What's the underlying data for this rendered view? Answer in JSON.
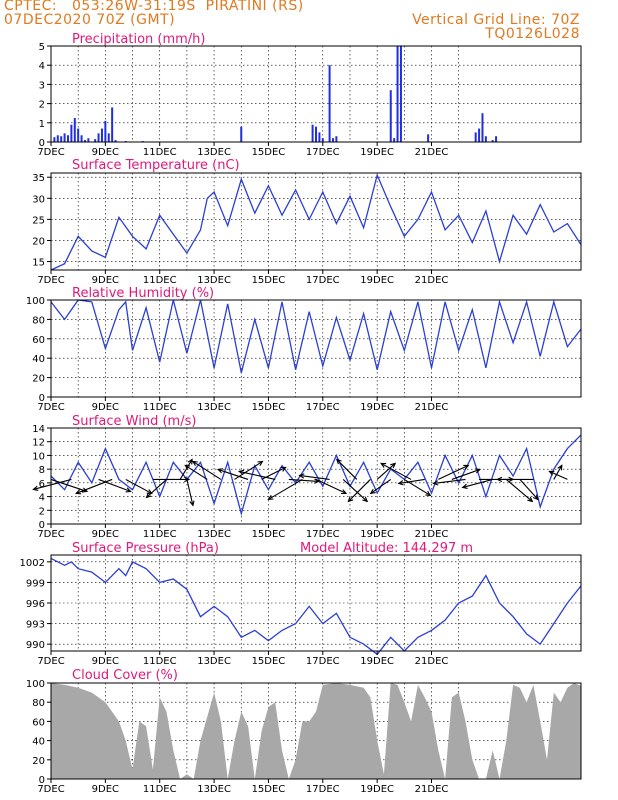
{
  "header": {
    "left_line1": "CPTEC:   053:26W-31:19S  PIRATINI (RS)",
    "left_line2": "07DEC2020 70Z (GMT)",
    "right_line1": "Vertical Grid Line: 70Z",
    "right_line2": "TQ0126L028"
  },
  "model_altitude": "Model Altitude: 144.297 m",
  "x_ticks": [
    "7DEC",
    "9DEC",
    "11DEC",
    "13DEC",
    "15DEC",
    "17DEC",
    "19DEC",
    "21DEC"
  ],
  "chart_data": [
    {
      "type": "bar",
      "title": "Precipitation (mm/h)",
      "ylim": [
        0,
        5
      ],
      "yticks": [
        "0",
        "1",
        "2",
        "3",
        "4",
        "5"
      ],
      "x_unit": "hours since 07DEC 00Z",
      "bars": [
        {
          "x": 3,
          "v": 0.25
        },
        {
          "x": 6,
          "v": 0.35
        },
        {
          "x": 9,
          "v": 0.3
        },
        {
          "x": 12,
          "v": 0.45
        },
        {
          "x": 15,
          "v": 0.35
        },
        {
          "x": 18,
          "v": 0.9
        },
        {
          "x": 21,
          "v": 1.25
        },
        {
          "x": 24,
          "v": 0.7
        },
        {
          "x": 27,
          "v": 0.35
        },
        {
          "x": 30,
          "v": 0.1
        },
        {
          "x": 33,
          "v": 0.2
        },
        {
          "x": 39,
          "v": 0.15
        },
        {
          "x": 42,
          "v": 0.45
        },
        {
          "x": 45,
          "v": 0.7
        },
        {
          "x": 48,
          "v": 1.1
        },
        {
          "x": 51,
          "v": 0.45
        },
        {
          "x": 54,
          "v": 1.8
        },
        {
          "x": 57,
          "v": 0.1
        },
        {
          "x": 66,
          "v": 0.05
        },
        {
          "x": 81,
          "v": 0.05
        },
        {
          "x": 168,
          "v": 0.8
        },
        {
          "x": 231,
          "v": 0.9
        },
        {
          "x": 234,
          "v": 0.8
        },
        {
          "x": 237,
          "v": 0.5
        },
        {
          "x": 240,
          "v": 0.2
        },
        {
          "x": 246,
          "v": 4.0
        },
        {
          "x": 249,
          "v": 0.2
        },
        {
          "x": 252,
          "v": 0.3
        },
        {
          "x": 300,
          "v": 2.7
        },
        {
          "x": 303,
          "v": 0.2
        },
        {
          "x": 306,
          "v": 5.0
        },
        {
          "x": 309,
          "v": 5.0
        },
        {
          "x": 333,
          "v": 0.4
        },
        {
          "x": 375,
          "v": 0.5
        },
        {
          "x": 378,
          "v": 0.7
        },
        {
          "x": 381,
          "v": 1.5
        },
        {
          "x": 384,
          "v": 0.3
        },
        {
          "x": 390,
          "v": 0.1
        },
        {
          "x": 393,
          "v": 0.3
        }
      ]
    },
    {
      "type": "line",
      "title": "Surface Temperature (nC)",
      "ylim": [
        13,
        36
      ],
      "yticks": [
        "15",
        "20",
        "25",
        "30",
        "35"
      ],
      "ytick_values": [
        15,
        20,
        25,
        30,
        35
      ],
      "x_unit": "hours since 07DEC 00Z",
      "points": [
        [
          0,
          13
        ],
        [
          12,
          14.5
        ],
        [
          24,
          21
        ],
        [
          36,
          17.5
        ],
        [
          48,
          16
        ],
        [
          60,
          25.5
        ],
        [
          72,
          21
        ],
        [
          84,
          18
        ],
        [
          96,
          26
        ],
        [
          108,
          21.5
        ],
        [
          120,
          17
        ],
        [
          132,
          22.5
        ],
        [
          138,
          30
        ],
        [
          144,
          31.5
        ],
        [
          156,
          23.5
        ],
        [
          168,
          34.5
        ],
        [
          180,
          26.5
        ],
        [
          192,
          33
        ],
        [
          204,
          26
        ],
        [
          216,
          32
        ],
        [
          228,
          25
        ],
        [
          240,
          31.5
        ],
        [
          252,
          24
        ],
        [
          264,
          30.5
        ],
        [
          276,
          23
        ],
        [
          288,
          35.5
        ],
        [
          300,
          28
        ],
        [
          312,
          21
        ],
        [
          324,
          25
        ],
        [
          336,
          31.5
        ],
        [
          348,
          22.5
        ],
        [
          360,
          26
        ],
        [
          372,
          19.5
        ],
        [
          384,
          27
        ],
        [
          396,
          15
        ],
        [
          408,
          26
        ],
        [
          420,
          21.5
        ],
        [
          432,
          28.5
        ],
        [
          444,
          22
        ],
        [
          456,
          24
        ],
        [
          468,
          19
        ]
      ]
    },
    {
      "type": "line",
      "title": "Relative Humidity (%)",
      "ylim": [
        0,
        100
      ],
      "yticks": [
        "0",
        "20",
        "40",
        "60",
        "80",
        "100"
      ],
      "ytick_values": [
        0,
        20,
        40,
        60,
        80,
        100
      ],
      "x_unit": "hours since 07DEC 00Z",
      "points": [
        [
          0,
          98
        ],
        [
          12,
          80
        ],
        [
          24,
          100
        ],
        [
          36,
          98
        ],
        [
          48,
          50
        ],
        [
          60,
          90
        ],
        [
          66,
          98
        ],
        [
          72,
          48
        ],
        [
          84,
          92
        ],
        [
          96,
          36
        ],
        [
          108,
          100
        ],
        [
          120,
          45
        ],
        [
          132,
          100
        ],
        [
          144,
          30
        ],
        [
          156,
          96
        ],
        [
          168,
          25
        ],
        [
          180,
          80
        ],
        [
          192,
          30
        ],
        [
          204,
          98
        ],
        [
          216,
          28
        ],
        [
          228,
          88
        ],
        [
          240,
          32
        ],
        [
          252,
          82
        ],
        [
          264,
          38
        ],
        [
          276,
          86
        ],
        [
          288,
          28
        ],
        [
          300,
          88
        ],
        [
          312,
          48
        ],
        [
          324,
          98
        ],
        [
          336,
          30
        ],
        [
          348,
          98
        ],
        [
          360,
          48
        ],
        [
          372,
          90
        ],
        [
          384,
          30
        ],
        [
          396,
          98
        ],
        [
          408,
          56
        ],
        [
          420,
          98
        ],
        [
          432,
          42
        ],
        [
          444,
          98
        ],
        [
          456,
          52
        ],
        [
          468,
          70
        ]
      ]
    },
    {
      "type": "line",
      "title": "Surface Wind (m/s)",
      "ylim": [
        0,
        14
      ],
      "yticks": [
        "0",
        "2",
        "4",
        "6",
        "8",
        "10",
        "12",
        "14"
      ],
      "ytick_values": [
        0,
        2,
        4,
        6,
        8,
        10,
        12,
        14
      ],
      "x_unit": "hours since 07DEC 00Z",
      "points": [
        [
          0,
          7
        ],
        [
          12,
          5
        ],
        [
          24,
          9
        ],
        [
          36,
          6
        ],
        [
          48,
          11
        ],
        [
          60,
          6.5
        ],
        [
          72,
          5
        ],
        [
          84,
          9
        ],
        [
          96,
          4
        ],
        [
          108,
          9
        ],
        [
          120,
          6.5
        ],
        [
          132,
          9
        ],
        [
          144,
          3
        ],
        [
          156,
          9
        ],
        [
          168,
          1.5
        ],
        [
          180,
          8.5
        ],
        [
          192,
          5
        ],
        [
          204,
          8.5
        ],
        [
          216,
          6
        ],
        [
          228,
          9
        ],
        [
          240,
          5.5
        ],
        [
          252,
          10
        ],
        [
          264,
          5.5
        ],
        [
          276,
          9
        ],
        [
          288,
          4.5
        ],
        [
          300,
          8
        ],
        [
          312,
          6.5
        ],
        [
          324,
          9
        ],
        [
          336,
          4.5
        ],
        [
          348,
          10
        ],
        [
          360,
          6
        ],
        [
          372,
          10
        ],
        [
          384,
          4
        ],
        [
          396,
          10
        ],
        [
          408,
          7
        ],
        [
          420,
          11
        ],
        [
          432,
          2.5
        ],
        [
          444,
          8
        ],
        [
          456,
          11
        ],
        [
          468,
          13
        ]
      ],
      "vectors": [
        {
          "x": 0,
          "dx": 36,
          "dy": 12
        },
        {
          "x": 18,
          "dx": -38,
          "dy": 10
        },
        {
          "x": 42,
          "dx": 32,
          "dy": 12
        },
        {
          "x": 54,
          "dx": -36,
          "dy": 14
        },
        {
          "x": 66,
          "dx": 26,
          "dy": 14
        },
        {
          "x": 90,
          "dx": 36,
          "dy": 0
        },
        {
          "x": 102,
          "dx": -20,
          "dy": 18
        },
        {
          "x": 114,
          "dx": 12,
          "dy": -20
        },
        {
          "x": 120,
          "dx": 6,
          "dy": 26
        },
        {
          "x": 138,
          "dx": -22,
          "dy": -14
        },
        {
          "x": 150,
          "dx": -28,
          "dy": -18
        },
        {
          "x": 162,
          "dx": 28,
          "dy": -18
        },
        {
          "x": 174,
          "dx": -30,
          "dy": -10
        },
        {
          "x": 186,
          "dx": 24,
          "dy": -12
        },
        {
          "x": 198,
          "dx": -36,
          "dy": -8
        },
        {
          "x": 210,
          "dx": 30,
          "dy": 2
        },
        {
          "x": 222,
          "dx": -34,
          "dy": 20
        },
        {
          "x": 234,
          "dx": 30,
          "dy": 14
        },
        {
          "x": 246,
          "dx": -30,
          "dy": -4
        },
        {
          "x": 258,
          "dx": 24,
          "dy": 22
        },
        {
          "x": 270,
          "dx": -20,
          "dy": -20
        },
        {
          "x": 282,
          "dx": -22,
          "dy": 22
        },
        {
          "x": 288,
          "dx": 18,
          "dy": -16
        },
        {
          "x": 300,
          "dx": -20,
          "dy": 14
        },
        {
          "x": 312,
          "dx": 26,
          "dy": 16
        },
        {
          "x": 318,
          "dx": -30,
          "dy": -16
        },
        {
          "x": 330,
          "dx": -26,
          "dy": 4
        },
        {
          "x": 342,
          "dx": 30,
          "dy": -14
        },
        {
          "x": 354,
          "dx": 28,
          "dy": -10
        },
        {
          "x": 366,
          "dx": -32,
          "dy": 4
        },
        {
          "x": 378,
          "dx": 34,
          "dy": 0
        },
        {
          "x": 390,
          "dx": -30,
          "dy": 8
        },
        {
          "x": 402,
          "dx": 26,
          "dy": 22
        },
        {
          "x": 414,
          "dx": 18,
          "dy": 20
        },
        {
          "x": 426,
          "dx": -36,
          "dy": 0
        },
        {
          "x": 444,
          "dx": 8,
          "dy": -14
        },
        {
          "x": 456,
          "dx": -18,
          "dy": -8
        }
      ]
    },
    {
      "type": "line",
      "title": "Surface Pressure (hPa)",
      "ylim": [
        989,
        1003
      ],
      "yticks": [
        "990",
        "993",
        "996",
        "999",
        "1002"
      ],
      "ytick_values": [
        990,
        993,
        996,
        999,
        1002
      ],
      "x_unit": "hours since 07DEC 00Z",
      "points": [
        [
          0,
          1002.5
        ],
        [
          12,
          1001.5
        ],
        [
          18,
          1002
        ],
        [
          24,
          1001
        ],
        [
          36,
          1000.5
        ],
        [
          48,
          999
        ],
        [
          60,
          1001
        ],
        [
          66,
          1000
        ],
        [
          72,
          1002
        ],
        [
          84,
          1001
        ],
        [
          96,
          999
        ],
        [
          108,
          999.5
        ],
        [
          120,
          998
        ],
        [
          132,
          994
        ],
        [
          144,
          995.5
        ],
        [
          156,
          994
        ],
        [
          168,
          991
        ],
        [
          180,
          992
        ],
        [
          192,
          990.5
        ],
        [
          204,
          992
        ],
        [
          216,
          993
        ],
        [
          228,
          995.5
        ],
        [
          240,
          993
        ],
        [
          252,
          994.5
        ],
        [
          264,
          991
        ],
        [
          276,
          990
        ],
        [
          288,
          988.5
        ],
        [
          300,
          991
        ],
        [
          312,
          989
        ],
        [
          324,
          991
        ],
        [
          336,
          992
        ],
        [
          348,
          993.5
        ],
        [
          360,
          996
        ],
        [
          372,
          997
        ],
        [
          384,
          1000
        ],
        [
          396,
          996
        ],
        [
          408,
          994
        ],
        [
          420,
          991.5
        ],
        [
          432,
          990
        ],
        [
          444,
          993
        ],
        [
          456,
          996
        ],
        [
          468,
          998.5
        ]
      ]
    },
    {
      "type": "area",
      "title": "Cloud Cover (%)",
      "ylim": [
        0,
        100
      ],
      "yticks": [
        "0",
        "20",
        "40",
        "60",
        "80",
        "100"
      ],
      "ytick_values": [
        0,
        20,
        40,
        60,
        80,
        100
      ],
      "x_unit": "hours since 07DEC 00Z",
      "fill_color": "#a8a8a8",
      "points": [
        [
          0,
          100
        ],
        [
          12,
          98
        ],
        [
          24,
          95
        ],
        [
          36,
          90
        ],
        [
          48,
          80
        ],
        [
          60,
          60
        ],
        [
          66,
          40
        ],
        [
          72,
          10
        ],
        [
          78,
          60
        ],
        [
          84,
          55
        ],
        [
          90,
          10
        ],
        [
          96,
          85
        ],
        [
          102,
          70
        ],
        [
          108,
          30
        ],
        [
          114,
          0
        ],
        [
          120,
          5
        ],
        [
          126,
          0
        ],
        [
          132,
          40
        ],
        [
          144,
          90
        ],
        [
          150,
          60
        ],
        [
          156,
          0
        ],
        [
          162,
          40
        ],
        [
          168,
          70
        ],
        [
          174,
          55
        ],
        [
          180,
          0
        ],
        [
          186,
          50
        ],
        [
          192,
          75
        ],
        [
          198,
          80
        ],
        [
          204,
          30
        ],
        [
          210,
          0
        ],
        [
          216,
          20
        ],
        [
          222,
          60
        ],
        [
          228,
          60
        ],
        [
          234,
          70
        ],
        [
          240,
          98
        ],
        [
          252,
          100
        ],
        [
          264,
          98
        ],
        [
          276,
          95
        ],
        [
          282,
          85
        ],
        [
          288,
          40
        ],
        [
          294,
          5
        ],
        [
          300,
          100
        ],
        [
          306,
          98
        ],
        [
          312,
          80
        ],
        [
          318,
          60
        ],
        [
          324,
          98
        ],
        [
          330,
          85
        ],
        [
          336,
          70
        ],
        [
          342,
          30
        ],
        [
          348,
          0
        ],
        [
          354,
          85
        ],
        [
          360,
          90
        ],
        [
          366,
          60
        ],
        [
          372,
          20
        ],
        [
          378,
          0
        ],
        [
          384,
          0
        ],
        [
          390,
          30
        ],
        [
          396,
          0
        ],
        [
          402,
          40
        ],
        [
          408,
          98
        ],
        [
          414,
          95
        ],
        [
          420,
          80
        ],
        [
          426,
          98
        ],
        [
          432,
          60
        ],
        [
          438,
          20
        ],
        [
          444,
          90
        ],
        [
          450,
          80
        ],
        [
          456,
          95
        ],
        [
          462,
          100
        ],
        [
          468,
          97
        ]
      ]
    }
  ]
}
